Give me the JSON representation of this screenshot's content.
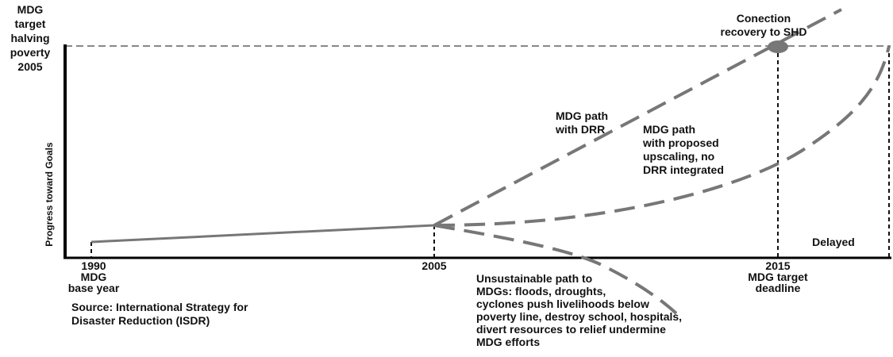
{
  "left_label": [
    "MDG",
    "target",
    "halving",
    "poverty",
    "2005"
  ],
  "y_axis_label": "Progress toward Goals",
  "connection_label": [
    "Conection",
    "recovery to SHD"
  ],
  "drr_path_label": [
    "MDG path",
    "with DRR"
  ],
  "upscaling_path_label": [
    "MDG path",
    "with proposed",
    "upscaling, no",
    "DRR integrated"
  ],
  "delayed_label": "Delayed",
  "year_1990": [
    "1990",
    "MDG",
    "base year"
  ],
  "year_2005": "2005",
  "year_2015": [
    "2015",
    "MDG target",
    "deadline"
  ],
  "unsustainable_label": [
    "Unsustainable path to",
    "MDGs: floods, droughts,",
    "cyclones push livelihoods below",
    "poverty line, destroy school, hospitals,",
    "divert resources to relief undermine",
    "MDG efforts"
  ],
  "source": [
    "Source: International Strategy for",
    "Disaster Reduction (ISDR)"
  ]
}
